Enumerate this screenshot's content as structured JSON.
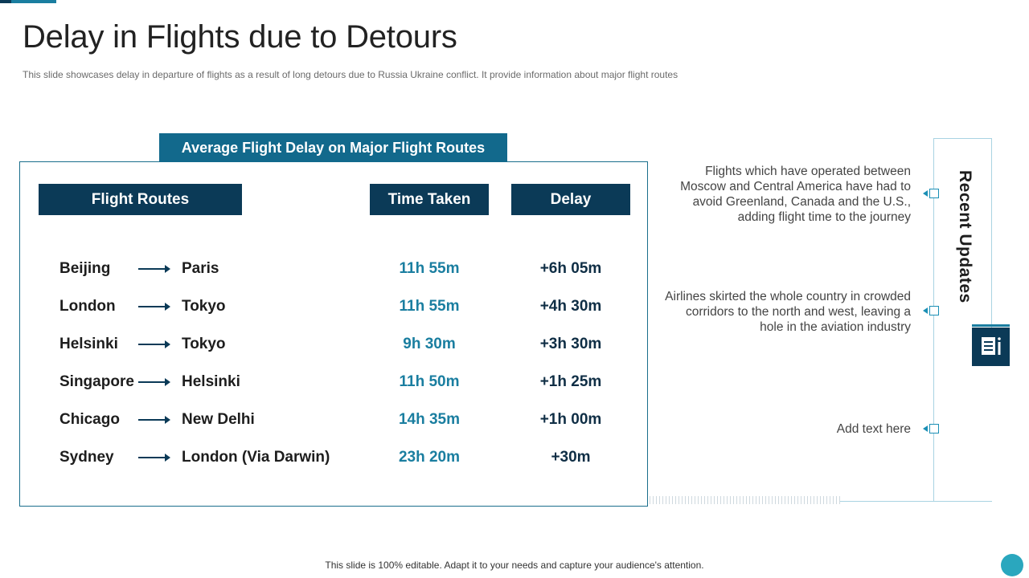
{
  "slide": {
    "title": "Delay in Flights due to Detours",
    "subtitle": "This slide showcases delay in departure of flights as a result of long detours due to Russia Ukraine conflict. It provide information about major flight routes",
    "footer": "This slide is 100% editable. Adapt it to your needs and capture your audience's attention."
  },
  "table": {
    "caption": "Average Flight Delay on Major Flight Routes",
    "headers": {
      "routes": "Flight Routes",
      "time": "Time Taken",
      "delay": "Delay"
    },
    "rows": [
      {
        "from": "Beijing",
        "to": "Paris",
        "time": "11h 55m",
        "delay": "+6h 05m"
      },
      {
        "from": "London",
        "to": "Tokyo",
        "time": "11h 55m",
        "delay": "+4h 30m"
      },
      {
        "from": "Helsinki",
        "to": "Tokyo",
        "time": "9h 30m",
        "delay": "+3h 30m"
      },
      {
        "from": "Singapore",
        "to": "Helsinki",
        "time": "11h 50m",
        "delay": "+1h 25m"
      },
      {
        "from": "Chicago",
        "to": "New Delhi",
        "time": "14h 35m",
        "delay": "+1h 00m"
      },
      {
        "from": "Sydney",
        "to": "London (Via Darwin)",
        "time": "23h 20m",
        "delay": "+30m"
      }
    ]
  },
  "updates": {
    "title": "Recent Updates",
    "icon": "notes-info-icon",
    "items": [
      {
        "text": "Flights which have operated between Moscow and Central America have had to avoid Greenland,  Canada and the U.S., adding flight time to the journey"
      },
      {
        "text": "Airlines skirted the whole country in crowded corridors to the north and west, leaving a hole in the aviation industry"
      },
      {
        "text": "Add text here"
      }
    ]
  },
  "colors": {
    "navy": "#0b3a57",
    "teal": "#12698c",
    "accent": "#1a7ea0",
    "dot": "#2aa7be"
  }
}
